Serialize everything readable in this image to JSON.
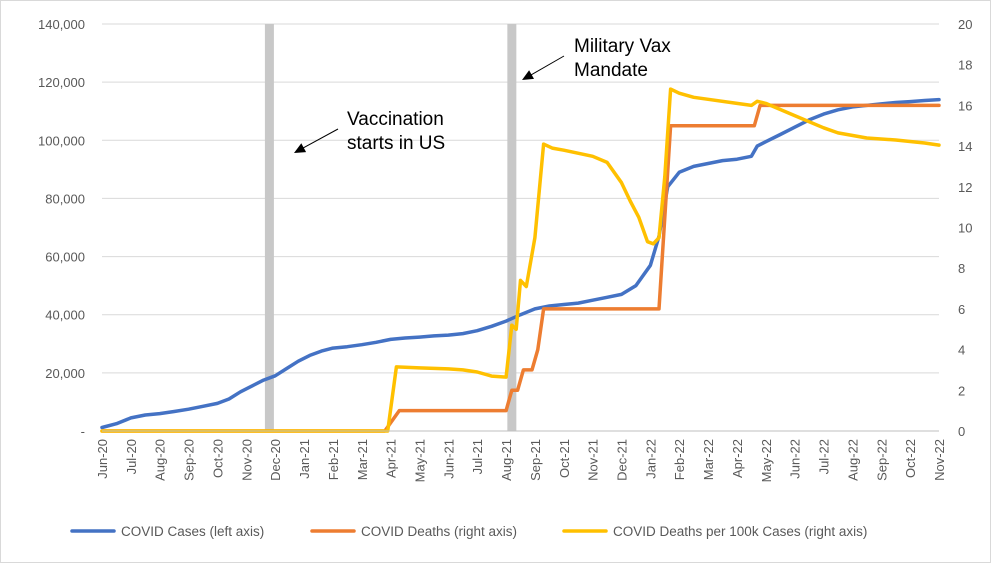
{
  "chart_data": {
    "type": "line",
    "title": "",
    "categories": [
      "Jun-20",
      "Jul-20",
      "Aug-20",
      "Sep-20",
      "Oct-20",
      "Nov-20",
      "Dec-20",
      "Jan-21",
      "Feb-21",
      "Mar-21",
      "Apr-21",
      "May-21",
      "Jun-21",
      "Jul-21",
      "Aug-21",
      "Sep-21",
      "Oct-21",
      "Nov-21",
      "Dec-21",
      "Jan-22",
      "Feb-22",
      "Mar-22",
      "Apr-22",
      "May-22",
      "Jun-22",
      "Jul-22",
      "Aug-22",
      "Sep-22",
      "Oct-22",
      "Nov-22"
    ],
    "y_left": {
      "ylim": [
        0,
        140000
      ],
      "tick_values": [
        0,
        20000,
        40000,
        60000,
        80000,
        100000,
        120000,
        140000
      ],
      "tick_labels": [
        "-",
        "20,000",
        "40,000",
        "60,000",
        "80,000",
        "100,000",
        "120,000",
        "140,000"
      ]
    },
    "y_right": {
      "ylim": [
        0,
        20
      ],
      "tick_values": [
        0,
        2,
        4,
        6,
        8,
        10,
        12,
        14,
        16,
        18,
        20
      ],
      "tick_labels": [
        "0",
        "2",
        "4",
        "6",
        "8",
        "10",
        "12",
        "14",
        "16",
        "18",
        "20"
      ]
    },
    "series": [
      {
        "name": "COVID Cases (left axis)",
        "axis": "left",
        "color": "#4472c4",
        "points": [
          [
            0,
            1200
          ],
          [
            0.5,
            2500
          ],
          [
            1,
            4500
          ],
          [
            1.5,
            5500
          ],
          [
            2,
            6000
          ],
          [
            2.5,
            6700
          ],
          [
            3,
            7500
          ],
          [
            3.5,
            8500
          ],
          [
            4,
            9500
          ],
          [
            4.4,
            11000
          ],
          [
            4.8,
            13500
          ],
          [
            5.2,
            15500
          ],
          [
            5.6,
            17500
          ],
          [
            6,
            19000
          ],
          [
            6.4,
            21500
          ],
          [
            6.8,
            24000
          ],
          [
            7.2,
            26000
          ],
          [
            7.6,
            27500
          ],
          [
            8,
            28500
          ],
          [
            8.5,
            29000
          ],
          [
            9,
            29700
          ],
          [
            9.5,
            30500
          ],
          [
            10,
            31500
          ],
          [
            10.5,
            32000
          ],
          [
            11,
            32300
          ],
          [
            11.5,
            32700
          ],
          [
            12,
            33000
          ],
          [
            12.5,
            33500
          ],
          [
            13,
            34500
          ],
          [
            13.5,
            36000
          ],
          [
            14,
            37800
          ],
          [
            14.5,
            40000
          ],
          [
            15,
            42000
          ],
          [
            15.5,
            43000
          ],
          [
            16,
            43500
          ],
          [
            16.5,
            44000
          ],
          [
            17,
            45000
          ],
          [
            17.5,
            46000
          ],
          [
            18,
            47000
          ],
          [
            18.5,
            50000
          ],
          [
            19,
            57000
          ],
          [
            19.3,
            67000
          ],
          [
            19.6,
            84000
          ],
          [
            20,
            89000
          ],
          [
            20.5,
            91000
          ],
          [
            21,
            92000
          ],
          [
            21.5,
            93000
          ],
          [
            22,
            93500
          ],
          [
            22.5,
            94500
          ],
          [
            22.7,
            98000
          ],
          [
            23,
            99500
          ],
          [
            23.5,
            102000
          ],
          [
            24,
            104500
          ],
          [
            24.5,
            107000
          ],
          [
            25,
            109000
          ],
          [
            25.5,
            110500
          ],
          [
            26,
            111500
          ],
          [
            26.5,
            112000
          ],
          [
            27,
            112500
          ],
          [
            27.5,
            113000
          ],
          [
            28,
            113300
          ],
          [
            28.5,
            113700
          ],
          [
            29,
            114000
          ]
        ]
      },
      {
        "name": "COVID Deaths (right axis)",
        "axis": "right",
        "color": "#ed7d31",
        "points": [
          [
            0,
            0
          ],
          [
            9.8,
            0
          ],
          [
            10.3,
            1
          ],
          [
            13.5,
            1
          ],
          [
            14,
            1
          ],
          [
            14.2,
            2
          ],
          [
            14.4,
            2
          ],
          [
            14.6,
            3
          ],
          [
            14.9,
            3
          ],
          [
            15.1,
            4
          ],
          [
            15.3,
            6
          ],
          [
            18.8,
            6
          ],
          [
            19.3,
            6
          ],
          [
            19.7,
            15
          ],
          [
            22.6,
            15
          ],
          [
            22.8,
            16
          ],
          [
            29,
            16
          ]
        ]
      },
      {
        "name": "COVID Deaths per 100k Cases (right axis)",
        "axis": "right",
        "color": "#ffc000",
        "points": [
          [
            0,
            0
          ],
          [
            9.9,
            0
          ],
          [
            10.2,
            3.15
          ],
          [
            11,
            3.1
          ],
          [
            12,
            3.05
          ],
          [
            12.5,
            3.0
          ],
          [
            13,
            2.9
          ],
          [
            13.5,
            2.7
          ],
          [
            14,
            2.65
          ],
          [
            14.2,
            5.2
          ],
          [
            14.35,
            5.0
          ],
          [
            14.5,
            7.4
          ],
          [
            14.7,
            7.1
          ],
          [
            15,
            9.5
          ],
          [
            15.3,
            14.1
          ],
          [
            15.6,
            13.9
          ],
          [
            16,
            13.8
          ],
          [
            17,
            13.5
          ],
          [
            17.5,
            13.2
          ],
          [
            18,
            12.2
          ],
          [
            18.3,
            11.3
          ],
          [
            18.6,
            10.5
          ],
          [
            18.9,
            9.3
          ],
          [
            19.1,
            9.2
          ],
          [
            19.3,
            9.5
          ],
          [
            19.5,
            12.5
          ],
          [
            19.7,
            16.8
          ],
          [
            20,
            16.6
          ],
          [
            20.5,
            16.4
          ],
          [
            21,
            16.3
          ],
          [
            22,
            16.1
          ],
          [
            22.5,
            16.0
          ],
          [
            22.7,
            16.2
          ],
          [
            23,
            16.1
          ],
          [
            23.5,
            15.8
          ],
          [
            24,
            15.5
          ],
          [
            25,
            14.9
          ],
          [
            25.5,
            14.65
          ],
          [
            26.5,
            14.4
          ],
          [
            27.5,
            14.3
          ],
          [
            28.5,
            14.15
          ],
          [
            29,
            14.05
          ]
        ]
      }
    ],
    "events": [
      {
        "name": "Vaccination starts in US",
        "x": 5.8
      },
      {
        "name": "Military Vax Mandate",
        "x": 14.2
      }
    ],
    "annotations": [
      {
        "lines": [
          "Vaccination",
          "starts in US"
        ]
      },
      {
        "lines": [
          "Military Vax",
          "Mandate"
        ]
      }
    ],
    "legend_position": "bottom"
  },
  "colors": {
    "cases": "#4472c4",
    "deaths": "#ed7d31",
    "deaths_per_100k": "#ffc000",
    "event_bar": "#c8c8c8",
    "gridline": "#d9d9d9"
  }
}
